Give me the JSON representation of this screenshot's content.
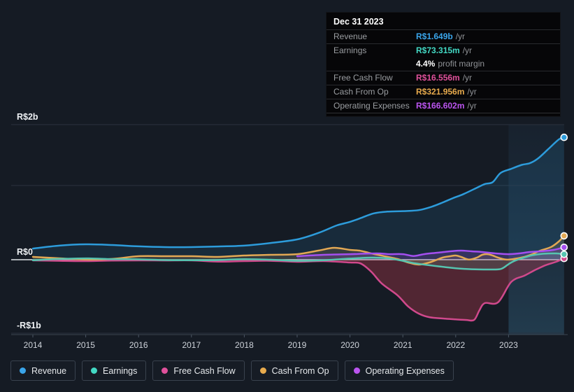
{
  "tooltip": {
    "title": "Dec 31 2023",
    "rows": [
      {
        "label": "Revenue",
        "value": "R$1.649b",
        "suffix": "/yr",
        "series": "revenue"
      },
      {
        "label": "Earnings",
        "value": "R$73.315m",
        "suffix": "/yr",
        "series": "earnings"
      },
      {
        "label": "",
        "value": "4.4%",
        "suffix": "profit margin",
        "series": "margin"
      },
      {
        "label": "Free Cash Flow",
        "value": "R$16.556m",
        "suffix": "/yr",
        "series": "free_cash_flow"
      },
      {
        "label": "Cash From Op",
        "value": "R$321.956m",
        "suffix": "/yr",
        "series": "cash_from_op"
      },
      {
        "label": "Operating Expenses",
        "value": "R$166.602m",
        "suffix": "/yr",
        "series": "operating_expenses"
      }
    ]
  },
  "axis": {
    "y_labels": [
      "R$2b",
      "R$0",
      "-R$1b"
    ],
    "x_labels": [
      "2014",
      "2015",
      "2016",
      "2017",
      "2018",
      "2019",
      "2020",
      "2021",
      "2022",
      "2023"
    ]
  },
  "legend": {
    "items": [
      {
        "label": "Revenue",
        "series": "revenue"
      },
      {
        "label": "Earnings",
        "series": "earnings"
      },
      {
        "label": "Free Cash Flow",
        "series": "free_cash_flow"
      },
      {
        "label": "Cash From Op",
        "series": "cash_from_op"
      },
      {
        "label": "Operating Expenses",
        "series": "operating_expenses"
      }
    ]
  },
  "chart_data": {
    "type": "area",
    "currency": "R$",
    "unit": "millions BRL per year",
    "x_range": [
      2014,
      2024.05
    ],
    "y_range_millions": [
      -1000,
      2000
    ],
    "y_gridlines_millions": [
      2000,
      1000,
      0,
      -1000
    ],
    "highlight_region": {
      "x_start": 2023.0,
      "x_end": 2024.05
    },
    "grid": true,
    "legend_position": "bottom",
    "series": [
      {
        "key": "revenue",
        "name": "Revenue",
        "color": "#2d9cdb",
        "text_color": "#3aa5ea",
        "fill_opacity": 0.13,
        "end_value_label": "R$1.649b",
        "points": [
          [
            2014,
            150
          ],
          [
            2014.5,
            190
          ],
          [
            2015,
            208
          ],
          [
            2015.5,
            198
          ],
          [
            2016,
            180
          ],
          [
            2016.5,
            170
          ],
          [
            2017,
            170
          ],
          [
            2017.5,
            178
          ],
          [
            2018,
            190
          ],
          [
            2018.5,
            225
          ],
          [
            2019,
            274
          ],
          [
            2019.4,
            360
          ],
          [
            2019.75,
            462
          ],
          [
            2020,
            510
          ],
          [
            2020.2,
            560
          ],
          [
            2020.45,
            625
          ],
          [
            2020.7,
            648
          ],
          [
            2021,
            655
          ],
          [
            2021.3,
            668
          ],
          [
            2021.55,
            715
          ],
          [
            2021.75,
            770
          ],
          [
            2021.95,
            830
          ],
          [
            2022.15,
            885
          ],
          [
            2022.4,
            970
          ],
          [
            2022.55,
            1020
          ],
          [
            2022.7,
            1045
          ],
          [
            2022.85,
            1170
          ],
          [
            2023.05,
            1225
          ],
          [
            2023.25,
            1278
          ],
          [
            2023.4,
            1300
          ],
          [
            2023.55,
            1360
          ],
          [
            2023.75,
            1490
          ],
          [
            2023.95,
            1620
          ],
          [
            2024.05,
            1649
          ]
        ]
      },
      {
        "key": "free_cash_flow",
        "name": "Free Cash Flow",
        "color": "#d0498c",
        "text_color": "#e0519b",
        "fill_color": "#cf3d55",
        "fill_opacity": 0.32,
        "end_value_label": "R$16.556m",
        "points": [
          [
            2014,
            -9
          ],
          [
            2014.5,
            -15
          ],
          [
            2015,
            -19
          ],
          [
            2015.5,
            -12
          ],
          [
            2016,
            -9
          ],
          [
            2016.5,
            -10
          ],
          [
            2017,
            -9
          ],
          [
            2017.5,
            -26
          ],
          [
            2018,
            -19
          ],
          [
            2018.5,
            -15
          ],
          [
            2019,
            -28
          ],
          [
            2019.5,
            -19
          ],
          [
            2020,
            -38
          ],
          [
            2020.2,
            -50
          ],
          [
            2020.4,
            -160
          ],
          [
            2020.6,
            -320
          ],
          [
            2020.9,
            -480
          ],
          [
            2021.1,
            -630
          ],
          [
            2021.3,
            -726
          ],
          [
            2021.5,
            -775
          ],
          [
            2021.8,
            -795
          ],
          [
            2022,
            -805
          ],
          [
            2022.2,
            -812
          ],
          [
            2022.35,
            -810
          ],
          [
            2022.45,
            -680
          ],
          [
            2022.55,
            -585
          ],
          [
            2022.8,
            -575
          ],
          [
            2023.05,
            -300
          ],
          [
            2023.3,
            -215
          ],
          [
            2023.5,
            -140
          ],
          [
            2023.7,
            -75
          ],
          [
            2023.9,
            -28
          ],
          [
            2024.05,
            17
          ]
        ]
      },
      {
        "key": "cash_from_op",
        "name": "Cash From Op",
        "color": "#e2a854",
        "text_color": "#e8ab4d",
        "fill_opacity": 0.15,
        "end_value_label": "R$321.956m",
        "points": [
          [
            2014,
            38
          ],
          [
            2014.5,
            19
          ],
          [
            2015,
            2
          ],
          [
            2015.5,
            10
          ],
          [
            2016,
            47
          ],
          [
            2016.5,
            47
          ],
          [
            2017,
            47
          ],
          [
            2017.5,
            38
          ],
          [
            2018,
            57
          ],
          [
            2018.5,
            66
          ],
          [
            2019,
            75
          ],
          [
            2019.4,
            123
          ],
          [
            2019.7,
            160
          ],
          [
            2020,
            132
          ],
          [
            2020.2,
            120
          ],
          [
            2020.4,
            85
          ],
          [
            2020.6,
            55
          ],
          [
            2020.9,
            9
          ],
          [
            2021.1,
            -38
          ],
          [
            2021.3,
            -66
          ],
          [
            2021.5,
            -38
          ],
          [
            2021.75,
            28
          ],
          [
            2021.9,
            47
          ],
          [
            2022,
            57
          ],
          [
            2022.1,
            38
          ],
          [
            2022.25,
            2
          ],
          [
            2022.4,
            28
          ],
          [
            2022.5,
            66
          ],
          [
            2022.6,
            75
          ],
          [
            2022.7,
            57
          ],
          [
            2022.8,
            28
          ],
          [
            2022.95,
            2
          ],
          [
            2023.1,
            10
          ],
          [
            2023.3,
            38
          ],
          [
            2023.45,
            75
          ],
          [
            2023.6,
            123
          ],
          [
            2023.8,
            170
          ],
          [
            2023.95,
            245
          ],
          [
            2024.05,
            322
          ]
        ]
      },
      {
        "key": "earnings",
        "name": "Earnings",
        "color": "#56c4b0",
        "text_color": "#43d9c4",
        "fill_opacity": 0.16,
        "end_value_label": "R$73.315m",
        "points": [
          [
            2014,
            -8
          ],
          [
            2014.5,
            10
          ],
          [
            2015,
            18
          ],
          [
            2015.5,
            8
          ],
          [
            2016,
            5
          ],
          [
            2016.5,
            -5
          ],
          [
            2017,
            -8
          ],
          [
            2017.5,
            -5
          ],
          [
            2018,
            8
          ],
          [
            2018.5,
            0
          ],
          [
            2019,
            -15
          ],
          [
            2019.5,
            -8
          ],
          [
            2020,
            15
          ],
          [
            2020.4,
            28
          ],
          [
            2020.7,
            20
          ],
          [
            2021,
            -15
          ],
          [
            2021.2,
            -45
          ],
          [
            2021.5,
            -75
          ],
          [
            2021.8,
            -100
          ],
          [
            2022,
            -115
          ],
          [
            2022.3,
            -128
          ],
          [
            2022.6,
            -132
          ],
          [
            2022.85,
            -125
          ],
          [
            2023,
            -60
          ],
          [
            2023.1,
            -20
          ],
          [
            2023.25,
            20
          ],
          [
            2023.45,
            60
          ],
          [
            2023.65,
            80
          ],
          [
            2023.9,
            85
          ],
          [
            2024.05,
            73
          ]
        ]
      },
      {
        "key": "operating_expenses",
        "name": "Operating Expenses",
        "color": "#a44ff0",
        "text_color": "#bb55f0",
        "fill_opacity": 0.2,
        "end_value_label": "R$166.602m",
        "points": [
          [
            2019,
            47
          ],
          [
            2019.5,
            66
          ],
          [
            2020,
            75
          ],
          [
            2020.5,
            85
          ],
          [
            2020.75,
            75
          ],
          [
            2021,
            75
          ],
          [
            2021.2,
            50
          ],
          [
            2021.4,
            75
          ],
          [
            2021.65,
            94
          ],
          [
            2021.9,
            113
          ],
          [
            2022.1,
            123
          ],
          [
            2022.3,
            113
          ],
          [
            2022.5,
            104
          ],
          [
            2022.75,
            85
          ],
          [
            2023,
            75
          ],
          [
            2023.2,
            85
          ],
          [
            2023.4,
            104
          ],
          [
            2023.6,
            113
          ],
          [
            2023.85,
            132
          ],
          [
            2024.05,
            167
          ]
        ]
      }
    ]
  }
}
